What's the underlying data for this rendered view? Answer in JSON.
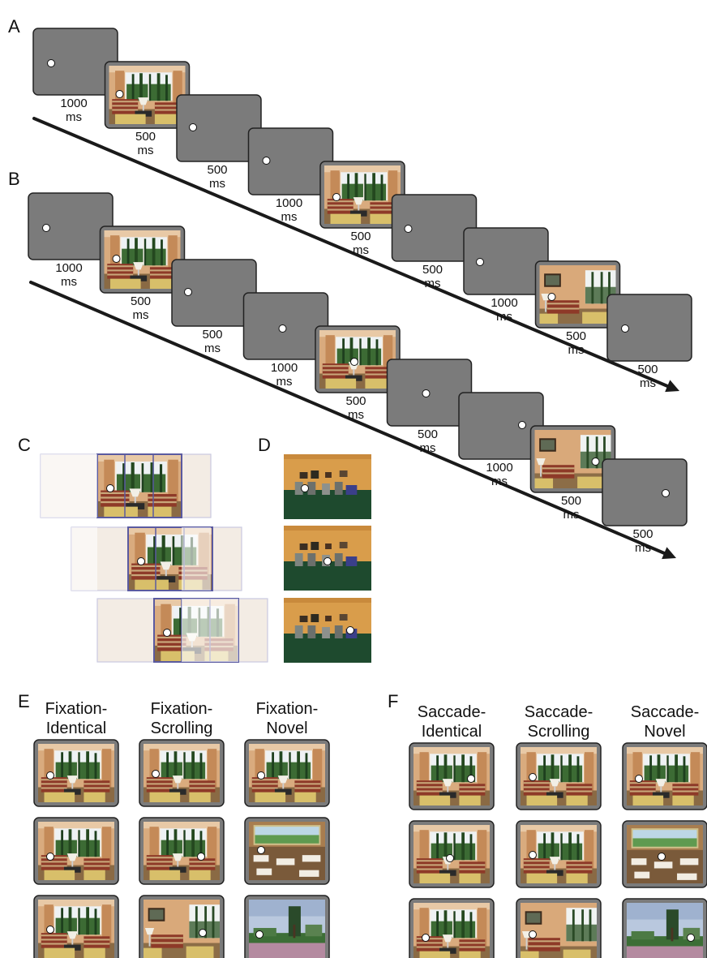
{
  "panels": {
    "A": "A",
    "B": "B",
    "C": "C",
    "D": "D",
    "E": "E",
    "F": "F"
  },
  "colors": {
    "frame_gray": "#7b7b7b",
    "frame_border": "#222222",
    "arrow": "#1a1a1a",
    "fixation_dot": "#ffffff",
    "window_outline": "#5a5aa0",
    "room_wall": "#d7a574",
    "room_floor": "#1f3b2a",
    "room_wall_orange": "#d8a051"
  },
  "sequence_A": [
    {
      "dur": "1000",
      "unit": "ms",
      "type": "blank"
    },
    {
      "dur": "500",
      "unit": "ms",
      "type": "scene"
    },
    {
      "dur": "500",
      "unit": "ms",
      "type": "blank"
    },
    {
      "dur": "1000",
      "unit": "ms",
      "type": "blank"
    },
    {
      "dur": "500",
      "unit": "ms",
      "type": "scene"
    },
    {
      "dur": "500",
      "unit": "ms",
      "type": "blank"
    },
    {
      "dur": "1000",
      "unit": "ms",
      "type": "blank"
    },
    {
      "dur": "500",
      "unit": "ms",
      "type": "scene"
    },
    {
      "dur": "500",
      "unit": "ms",
      "type": "blank"
    }
  ],
  "sequence_B": [
    {
      "dur": "1000",
      "unit": "ms",
      "type": "blank"
    },
    {
      "dur": "500",
      "unit": "ms",
      "type": "scene"
    },
    {
      "dur": "500",
      "unit": "ms",
      "type": "blank"
    },
    {
      "dur": "1000",
      "unit": "ms",
      "type": "blank"
    },
    {
      "dur": "500",
      "unit": "ms",
      "type": "scene"
    },
    {
      "dur": "500",
      "unit": "ms",
      "type": "blank"
    },
    {
      "dur": "1000",
      "unit": "ms",
      "type": "blank"
    },
    {
      "dur": "500",
      "unit": "ms",
      "type": "scene"
    },
    {
      "dur": "500",
      "unit": "ms",
      "type": "blank"
    }
  ],
  "panel_E": {
    "columns": [
      {
        "line1": "Fixation-",
        "line2": "Identical"
      },
      {
        "line1": "Fixation-",
        "line2": "Scrolling"
      },
      {
        "line1": "Fixation-",
        "line2": "Novel"
      }
    ]
  },
  "panel_F": {
    "columns": [
      {
        "line1": "Saccade-",
        "line2": "Identical"
      },
      {
        "line1": "Saccade-",
        "line2": "Scrolling"
      },
      {
        "line1": "Saccade-",
        "line2": "Novel"
      }
    ]
  }
}
